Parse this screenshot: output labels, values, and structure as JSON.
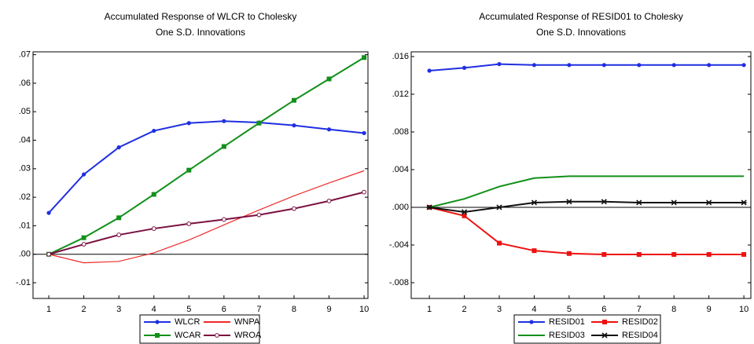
{
  "chart_data": [
    {
      "type": "line",
      "title": "Accumulated Response of WLCR to Cholesky",
      "subtitle": "One S.D. Innovations",
      "x": [
        1,
        2,
        3,
        4,
        5,
        6,
        7,
        8,
        9,
        10
      ],
      "xlim": [
        0.55,
        10.11
      ],
      "xticks": [
        1,
        2,
        3,
        4,
        5,
        6,
        7,
        8,
        9,
        10
      ],
      "ylim": [
        -0.0155,
        0.071
      ],
      "yticks": [
        {
          "value": -0.01,
          "label": "-.01"
        },
        {
          "value": 0,
          "label": ".00"
        },
        {
          "value": 0.01,
          "label": ".01"
        },
        {
          "value": 0.02,
          "label": ".02"
        },
        {
          "value": 0.03,
          "label": ".03"
        },
        {
          "value": 0.04,
          "label": ".04"
        },
        {
          "value": 0.05,
          "label": ".05"
        },
        {
          "value": 0.06,
          "label": ".06"
        },
        {
          "value": 0.07,
          "label": ".07"
        }
      ],
      "series": [
        {
          "name": "WLCR",
          "color": "#1f2fe0",
          "marker": "circle",
          "values": [
            0.0145,
            0.028,
            0.0375,
            0.0433,
            0.046,
            0.0467,
            0.0462,
            0.0452,
            0.0438,
            0.0425
          ]
        },
        {
          "name": "WNPA",
          "color": "#ee2a2a",
          "marker": "none",
          "values": [
            0,
            -0.003,
            -0.0025,
            0.0005,
            0.005,
            0.0103,
            0.0155,
            0.0205,
            0.025,
            0.0293
          ]
        },
        {
          "name": "WCAR",
          "color": "#12901a",
          "marker": "square",
          "values": [
            0,
            0.0058,
            0.0128,
            0.021,
            0.0295,
            0.0378,
            0.046,
            0.054,
            0.0615,
            0.069
          ]
        },
        {
          "name": "WROA",
          "color": "#7a1040",
          "marker": "open-circle",
          "values": [
            0,
            0.0035,
            0.0068,
            0.009,
            0.0107,
            0.0122,
            0.0138,
            0.016,
            0.0187,
            0.0218
          ]
        }
      ]
    },
    {
      "type": "line",
      "title": "Accumulated Response of RESID01 to Cholesky",
      "subtitle": "One S.D. Innovations",
      "x": [
        1,
        2,
        3,
        4,
        5,
        6,
        7,
        8,
        9,
        10
      ],
      "xlim": [
        0.48,
        10.2
      ],
      "xticks": [
        1,
        2,
        3,
        4,
        5,
        6,
        7,
        8,
        9,
        10
      ],
      "ylim": [
        -0.00967,
        0.0165
      ],
      "yticks": [
        {
          "value": -0.008,
          "label": "-.008"
        },
        {
          "value": -0.004,
          "label": "-.004"
        },
        {
          "value": 0,
          "label": ".000"
        },
        {
          "value": 0.004,
          "label": ".004"
        },
        {
          "value": 0.008,
          "label": ".008"
        },
        {
          "value": 0.012,
          "label": ".012"
        },
        {
          "value": 0.016,
          "label": ".016"
        }
      ],
      "series": [
        {
          "name": "RESID01",
          "color": "#1f2fe0",
          "marker": "circle",
          "values": [
            0.0145,
            0.0148,
            0.0152,
            0.0151,
            0.0151,
            0.0151,
            0.0151,
            0.0151,
            0.0151,
            0.0151
          ]
        },
        {
          "name": "RESID02",
          "color": "#ee1111",
          "marker": "square",
          "values": [
            0,
            -0.0009,
            -0.0038,
            -0.0046,
            -0.0049,
            -0.005,
            -0.005,
            -0.005,
            -0.005,
            -0.005
          ]
        },
        {
          "name": "RESID03",
          "color": "#12901a",
          "marker": "none",
          "values": [
            0,
            0.0009,
            0.0022,
            0.0031,
            0.0033,
            0.0033,
            0.0033,
            0.0033,
            0.0033,
            0.0033
          ]
        },
        {
          "name": "RESID04",
          "color": "#111111",
          "marker": "star",
          "values": [
            0,
            -0.0005,
            0,
            0.0005,
            0.0006,
            0.0006,
            0.0005,
            0.0005,
            0.0005,
            0.0005
          ]
        }
      ]
    }
  ]
}
